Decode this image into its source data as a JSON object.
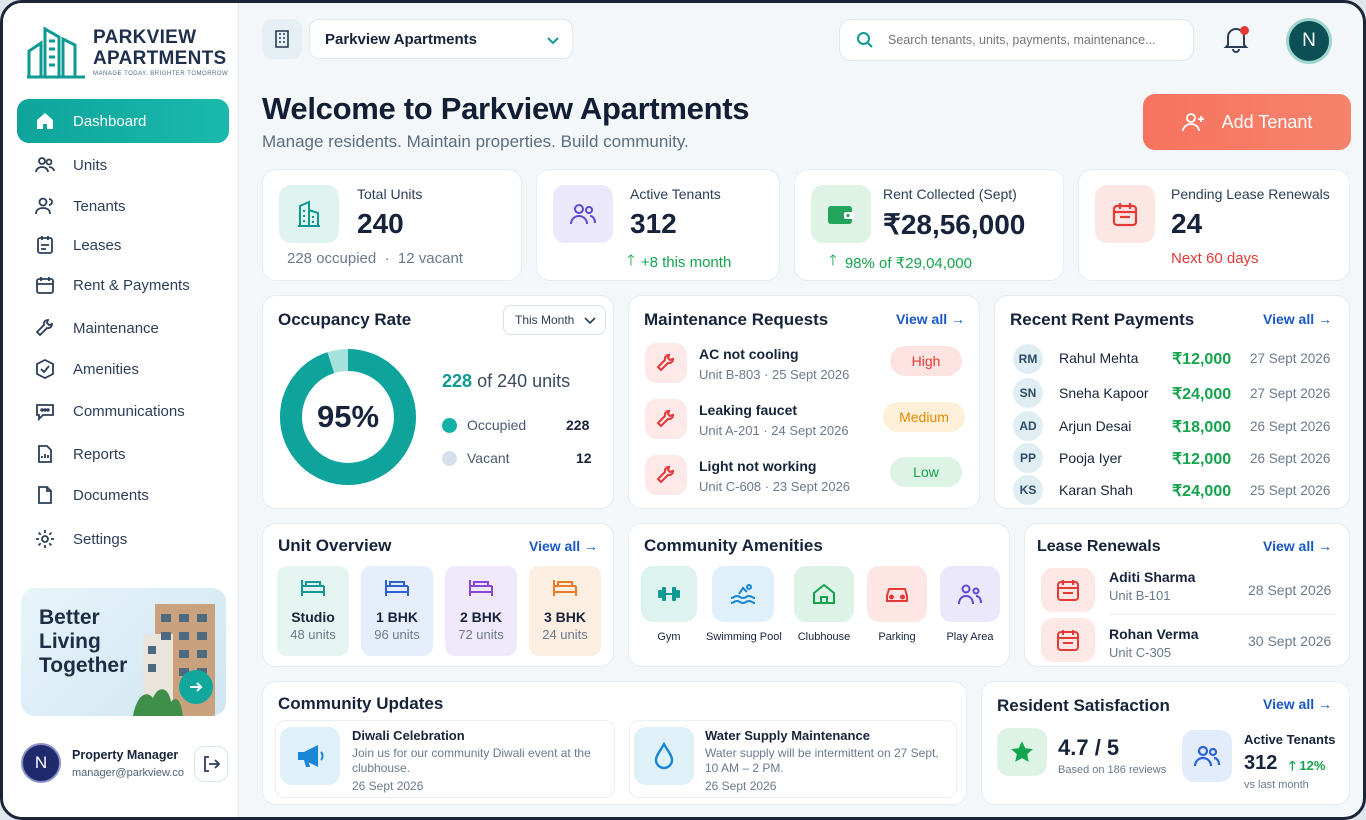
{
  "brand": {
    "name_line1": "PARKVIEW",
    "name_line2": "APARTMENTS",
    "tagline": "MANAGE TODAY. BRIGHTER TOMORROW"
  },
  "nav": [
    {
      "label": "Dashboard",
      "icon": "home-icon"
    },
    {
      "label": "Units",
      "icon": "users-icon"
    },
    {
      "label": "Tenants",
      "icon": "tenants-icon"
    },
    {
      "label": "Leases",
      "icon": "lease-icon"
    },
    {
      "label": "Rent & Payments",
      "icon": "calendar-icon"
    },
    {
      "label": "Maintenance",
      "icon": "wrench-icon"
    },
    {
      "label": "Amenities",
      "icon": "amenities-icon"
    },
    {
      "label": "Communications",
      "icon": "chat-icon"
    },
    {
      "label": "Reports",
      "icon": "reports-icon"
    },
    {
      "label": "Documents",
      "icon": "document-icon"
    },
    {
      "label": "Settings",
      "icon": "gear-icon"
    }
  ],
  "promo": {
    "text": "Better Living Together"
  },
  "user": {
    "initial": "N",
    "role": "Property Manager",
    "email": "manager@parkview.co"
  },
  "topbar": {
    "property": "Parkview Apartments",
    "search_placeholder": "Search tenants, units, payments, maintenance...",
    "avatar_initial": "N"
  },
  "welcome": {
    "title": "Welcome to Parkview Apartments",
    "subtitle": "Manage residents. Maintain properties. Build community.",
    "add_button": "Add Tenant"
  },
  "stats": [
    {
      "label": "Total Units",
      "value": "240",
      "sub": "228 occupied  ·  12 vacant"
    },
    {
      "label": "Active Tenants",
      "value": "312",
      "sub": "+8 this month"
    },
    {
      "label": "Rent Collected (Sept)",
      "value": "₹28,56,000",
      "sub": "98% of ₹29,04,000"
    },
    {
      "label": "Pending Lease Renewals",
      "value": "24",
      "sub": "Next 60 days"
    }
  ],
  "occupancy": {
    "title": "Occupancy Rate",
    "filter": "This Month",
    "percent": "95%",
    "fraction": 0.95,
    "units_bold": "228",
    "units_rest": "of 240 units",
    "occupied_label": "Occupied",
    "occupied": "228",
    "vacant_label": "Vacant",
    "vacant": "12"
  },
  "maintenance": {
    "title": "Maintenance Requests",
    "view_all": "View all",
    "items": [
      {
        "title": "AC not cooling",
        "meta": "Unit B-803 · 25 Sept 2026",
        "priority": "High"
      },
      {
        "title": "Leaking faucet",
        "meta": "Unit A-201 · 24 Sept 2026",
        "priority": "Medium"
      },
      {
        "title": "Light not working",
        "meta": "Unit C-608 · 23 Sept 2026",
        "priority": "Low"
      }
    ]
  },
  "payments": {
    "title": "Recent Rent Payments",
    "view_all": "View all",
    "items": [
      {
        "initials": "RM",
        "name": "Rahul Mehta",
        "amount": "₹12,000",
        "date": "27 Sept 2026"
      },
      {
        "initials": "SN",
        "name": "Sneha Kapoor",
        "amount": "₹24,000",
        "date": "27 Sept 2026"
      },
      {
        "initials": "AD",
        "name": "Arjun Desai",
        "amount": "₹18,000",
        "date": "26 Sept 2026"
      },
      {
        "initials": "PP",
        "name": "Pooja Iyer",
        "amount": "₹12,000",
        "date": "26 Sept 2026"
      },
      {
        "initials": "KS",
        "name": "Karan Shah",
        "amount": "₹24,000",
        "date": "25 Sept 2026"
      }
    ]
  },
  "units": {
    "title": "Unit Overview",
    "view_all": "View all",
    "items": [
      {
        "name": "Studio",
        "count": "48 units"
      },
      {
        "name": "1 BHK",
        "count": "96 units"
      },
      {
        "name": "2 BHK",
        "count": "72 units"
      },
      {
        "name": "3 BHK",
        "count": "24 units"
      }
    ]
  },
  "amenities": {
    "title": "Community Amenities",
    "items": [
      "Gym",
      "Swimming Pool",
      "Clubhouse",
      "Parking",
      "Play Area"
    ]
  },
  "renewals": {
    "title": "Lease Renewals",
    "view_all": "View all",
    "items": [
      {
        "name": "Aditi Sharma",
        "unit": "Unit B-101",
        "date": "28 Sept 2026"
      },
      {
        "name": "Rohan Verma",
        "unit": "Unit C-305",
        "date": "30 Sept 2026"
      }
    ]
  },
  "updates": {
    "title": "Community Updates",
    "items": [
      {
        "title": "Diwali Celebration",
        "body": "Join us for our community Diwali event at the clubhouse.",
        "date": "26 Sept 2026"
      },
      {
        "title": "Water Supply Maintenance",
        "body": "Water supply will be intermittent on 27 Sept, 10 AM – 2 PM.",
        "date": "26 Sept 2026"
      }
    ]
  },
  "satisfaction": {
    "title": "Resident Satisfaction",
    "view_all": "View all",
    "rating": "4.7 / 5",
    "reviews": "Based on 186 reviews",
    "tenants_label": "Active Tenants",
    "tenants": "312",
    "change": "12%",
    "change_sub": "vs last month"
  },
  "colors": {
    "teal": "#0ea49b",
    "accent": "#f46b5b",
    "link": "#1858c7",
    "green": "#14a44d",
    "red": "#e53935"
  }
}
